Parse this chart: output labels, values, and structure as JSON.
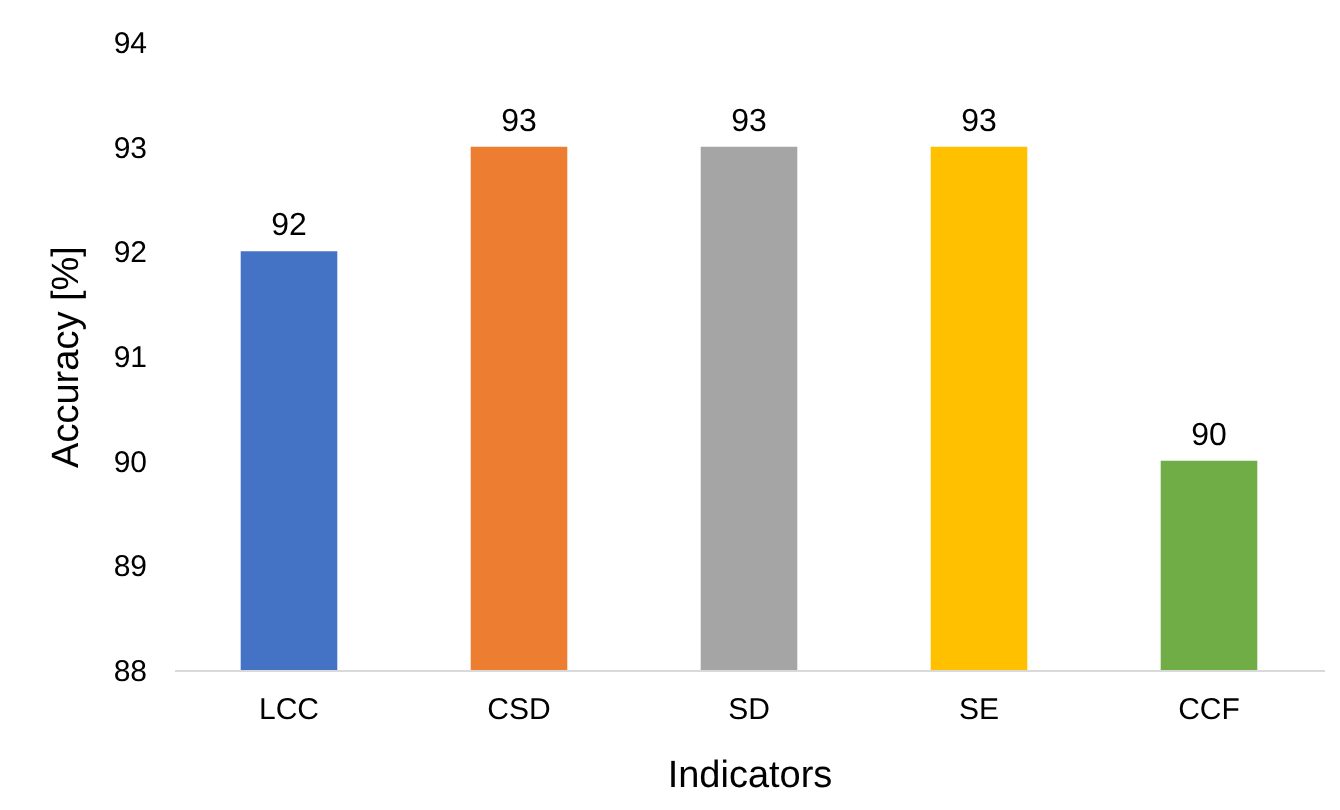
{
  "chart_data": {
    "type": "bar",
    "xlabel": "Indicators",
    "ylabel": "Accuracy [%]",
    "categories": [
      "LCC",
      "CSD",
      "SD",
      "SE",
      "CCF"
    ],
    "values": [
      92,
      93,
      93,
      93,
      90
    ],
    "colors": [
      "#4472c4",
      "#ed7d31",
      "#a5a5a5",
      "#ffc000",
      "#70ad47"
    ],
    "ylim": [
      88,
      94
    ],
    "yticks": [
      88,
      89,
      90,
      91,
      92,
      93,
      94
    ],
    "grid": false,
    "data_labels": true
  }
}
